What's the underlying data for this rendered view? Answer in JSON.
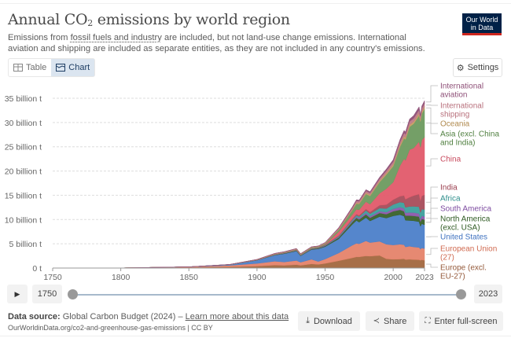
{
  "header": {
    "title_main": "Annual CO",
    "title_sub": "2",
    "title_rest": " emissions by world region",
    "subtitle_pre": "Emissions from ",
    "subtitle_link": "fossil fuels and industry",
    "subtitle_post": " are included, but not land-use change emissions. International aviation and shipping are included as separate entities, as they are not included in any country's emissions.",
    "logo_line1": "Our World",
    "logo_line2": "in Data"
  },
  "tabs": [
    {
      "label": "Table",
      "icon": "table-icon",
      "active": false
    },
    {
      "label": "Chart",
      "icon": "chart-icon",
      "active": true
    }
  ],
  "settings_label": "Settings",
  "timeline": {
    "play_icon": "play-icon",
    "start_year": "1750",
    "end_year": "2023",
    "range_start_fraction": 0,
    "range_end_fraction": 1
  },
  "footer": {
    "source_label": "Data source:",
    "source_text": " Global Carbon Budget (2024) – ",
    "learn_more": "Learn more about this data",
    "url": "OurWorldinData.org/co2-and-greenhouse-gas-emissions | CC BY",
    "download": "Download",
    "share": "Share",
    "fullscreen": "Enter full-screen"
  },
  "chart_data": {
    "type": "area",
    "stacked": true,
    "title": "Annual CO₂ emissions by world region",
    "xlabel": "",
    "ylabel": "",
    "xlim": [
      1750,
      2023
    ],
    "ylim": [
      0,
      37
    ],
    "y_unit": "billion t",
    "grid": true,
    "legend": "right",
    "x_ticks": [
      "1750",
      "1800",
      "1850",
      "1900",
      "1950",
      "2000",
      "2023"
    ],
    "y_ticks": [
      {
        "value": 0,
        "label": "0 t"
      },
      {
        "value": 5,
        "label": "5 billion t"
      },
      {
        "value": 10,
        "label": "10 billion t"
      },
      {
        "value": 15,
        "label": "15 billion t"
      },
      {
        "value": 20,
        "label": "20 billion t"
      },
      {
        "value": 25,
        "label": "25 billion t"
      },
      {
        "value": 30,
        "label": "30 billion t"
      },
      {
        "value": 35,
        "label": "35 billion t"
      }
    ],
    "x": [
      1750,
      1800,
      1850,
      1880,
      1900,
      1913,
      1920,
      1929,
      1932,
      1940,
      1945,
      1950,
      1960,
      1970,
      1973,
      1975,
      1980,
      1983,
      1990,
      1995,
      2000,
      2005,
      2008,
      2009,
      2012,
      2015,
      2019,
      2020,
      2021,
      2023
    ],
    "series": [
      {
        "name": "Europe (excl. EU-27)",
        "color": "#a2673e",
        "values": [
          0.01,
          0.02,
          0.12,
          0.25,
          0.4,
          0.6,
          0.55,
          0.7,
          0.55,
          0.85,
          0.75,
          0.95,
          1.5,
          2.1,
          2.3,
          2.3,
          2.5,
          2.45,
          2.6,
          1.9,
          1.8,
          1.85,
          1.9,
          1.75,
          1.8,
          1.75,
          1.7,
          1.6,
          1.7,
          1.6
        ]
      },
      {
        "name": "European Union (27)",
        "color": "#e5836a",
        "values": [
          0.0,
          0.01,
          0.1,
          0.3,
          0.55,
          0.8,
          0.7,
          0.85,
          0.65,
          0.95,
          0.6,
          0.9,
          1.6,
          2.6,
          2.8,
          2.7,
          3.1,
          2.8,
          2.9,
          3.0,
          2.95,
          3.05,
          2.9,
          2.6,
          2.7,
          2.6,
          2.55,
          2.3,
          2.45,
          2.4
        ]
      },
      {
        "name": "United States",
        "color": "#4c7fc9",
        "values": [
          0.0,
          0.0,
          0.03,
          0.15,
          0.65,
          1.25,
          1.7,
          1.95,
          1.3,
          2.0,
          2.6,
          2.55,
          2.9,
          4.3,
          4.7,
          4.45,
          4.8,
          4.45,
          5.1,
          5.4,
          6.0,
          6.1,
          5.9,
          5.5,
          5.3,
          5.4,
          5.3,
          4.7,
          5.0,
          4.9
        ]
      },
      {
        "name": "North America (excl. USA)",
        "color": "#38612a",
        "values": [
          0,
          0,
          0,
          0.01,
          0.03,
          0.06,
          0.08,
          0.1,
          0.08,
          0.1,
          0.12,
          0.15,
          0.3,
          0.5,
          0.55,
          0.57,
          0.65,
          0.65,
          0.75,
          0.8,
          0.95,
          1.0,
          1.0,
          0.95,
          1.0,
          1.0,
          1.05,
          0.95,
          1.0,
          1.05
        ]
      },
      {
        "name": "South America",
        "color": "#8d57ac",
        "values": [
          0,
          0,
          0,
          0,
          0.01,
          0.02,
          0.02,
          0.03,
          0.03,
          0.04,
          0.05,
          0.07,
          0.12,
          0.2,
          0.24,
          0.26,
          0.32,
          0.3,
          0.35,
          0.42,
          0.5,
          0.55,
          0.6,
          0.58,
          0.65,
          0.68,
          0.64,
          0.58,
          0.64,
          0.65
        ]
      },
      {
        "name": "Africa",
        "color": "#3c9f9c",
        "values": [
          0,
          0,
          0,
          0,
          0.01,
          0.02,
          0.03,
          0.04,
          0.04,
          0.05,
          0.06,
          0.08,
          0.15,
          0.25,
          0.3,
          0.32,
          0.5,
          0.55,
          0.65,
          0.75,
          0.9,
          1.05,
          1.15,
          1.15,
          1.25,
          1.3,
          1.4,
          1.3,
          1.37,
          1.45
        ]
      },
      {
        "name": "India",
        "color": "#a64c5a",
        "values": [
          0,
          0,
          0,
          0.01,
          0.02,
          0.03,
          0.04,
          0.04,
          0.04,
          0.05,
          0.06,
          0.07,
          0.12,
          0.2,
          0.22,
          0.25,
          0.3,
          0.35,
          0.6,
          0.8,
          1.0,
          1.2,
          1.5,
          1.65,
          1.9,
          2.2,
          2.6,
          2.45,
          2.7,
          3.05
        ]
      },
      {
        "name": "China",
        "color": "#e15a6a",
        "values": [
          0,
          0,
          0,
          0,
          0.01,
          0.02,
          0.02,
          0.03,
          0.03,
          0.03,
          0.03,
          0.08,
          0.8,
          0.85,
          1.0,
          1.15,
          1.5,
          1.6,
          2.45,
          3.3,
          3.6,
          6.3,
          7.6,
          8.0,
          9.8,
          9.8,
          10.8,
          11.0,
          11.5,
          11.9
        ]
      },
      {
        "name": "Asia (excl. China and India)",
        "color": "#6d9a5f",
        "values": [
          0,
          0,
          0,
          0.01,
          0.03,
          0.07,
          0.08,
          0.1,
          0.1,
          0.15,
          0.12,
          0.18,
          0.4,
          0.9,
          1.15,
          1.2,
          1.6,
          1.7,
          2.3,
          2.9,
          3.3,
          3.9,
          4.2,
          4.3,
          4.7,
          5.0,
          5.4,
          5.3,
          5.5,
          5.8
        ]
      },
      {
        "name": "Oceania",
        "color": "#c79c63",
        "values": [
          0,
          0,
          0,
          0.01,
          0.02,
          0.03,
          0.03,
          0.04,
          0.03,
          0.04,
          0.05,
          0.06,
          0.1,
          0.17,
          0.2,
          0.2,
          0.25,
          0.27,
          0.3,
          0.33,
          0.39,
          0.43,
          0.45,
          0.45,
          0.45,
          0.44,
          0.45,
          0.43,
          0.43,
          0.43
        ]
      },
      {
        "name": "International shipping",
        "color": "#be7a86",
        "values": [
          0,
          0,
          0,
          0.01,
          0.05,
          0.12,
          0.12,
          0.15,
          0.12,
          0.12,
          0.1,
          0.15,
          0.25,
          0.35,
          0.4,
          0.38,
          0.4,
          0.37,
          0.42,
          0.48,
          0.55,
          0.62,
          0.7,
          0.66,
          0.66,
          0.7,
          0.72,
          0.65,
          0.7,
          0.72
        ]
      },
      {
        "name": "International aviation",
        "color": "#8e4f77",
        "values": [
          0,
          0,
          0,
          0,
          0,
          0,
          0,
          0,
          0,
          0.01,
          0.02,
          0.03,
          0.1,
          0.2,
          0.22,
          0.22,
          0.24,
          0.25,
          0.3,
          0.34,
          0.4,
          0.45,
          0.48,
          0.45,
          0.5,
          0.55,
          0.62,
          0.35,
          0.42,
          0.55
        ]
      }
    ]
  }
}
